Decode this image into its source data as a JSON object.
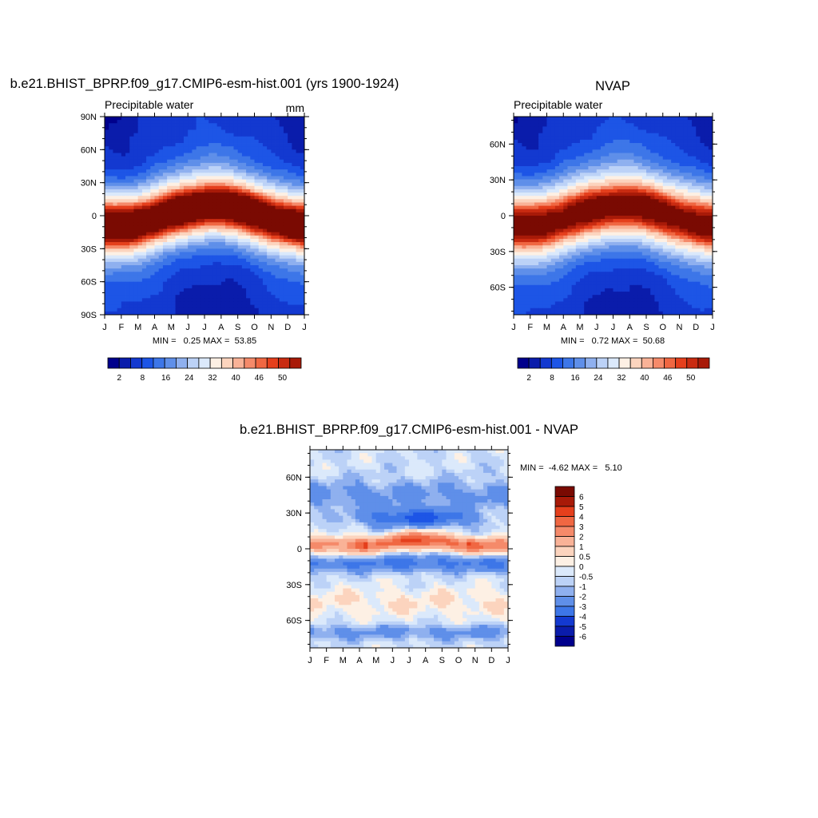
{
  "palette": [
    "#00008c",
    "#0a1cab",
    "#1339d0",
    "#1d55e6",
    "#3d76e8",
    "#5f8fe9",
    "#8fb0ef",
    "#bcd2f7",
    "#dbe9fb",
    "#fdf0e4",
    "#fcd4be",
    "#f9b297",
    "#f58a6a",
    "#f06742",
    "#e53f1c",
    "#c92b11",
    "#a81a08",
    "#7a0a02"
  ],
  "months": [
    "J",
    "F",
    "M",
    "A",
    "M",
    "J",
    "J",
    "A",
    "S",
    "O",
    "N",
    "D",
    "J"
  ],
  "chart_data": [
    {
      "id": "model",
      "type": "heatmap",
      "title": "b.e21.BHIST_BPRP.f09_g17.CMIP6-esm-hist.001 (yrs 1900-1924)",
      "subtitle_left": "Precipitable water",
      "subtitle_right": "mm",
      "y_ticks": [
        "90N",
        "60N",
        "30N",
        "0",
        "30S",
        "60S",
        "90S"
      ],
      "y_tick_values": [
        90,
        60,
        30,
        0,
        -30,
        -60,
        -90
      ],
      "ylim": [
        -90,
        90
      ],
      "stats": "MIN =   0.25 MAX =  53.85",
      "min": 0.25,
      "max": 53.85,
      "itcz_shift": 8,
      "colorbar_labels": [
        "2",
        "8",
        "16",
        "24",
        "32",
        "40",
        "46",
        "50"
      ],
      "levels": [
        2,
        4,
        8,
        12,
        16,
        20,
        24,
        28,
        32,
        36,
        40,
        42,
        44,
        46,
        48,
        50,
        52
      ]
    },
    {
      "id": "nvap",
      "type": "heatmap",
      "title": "NVAP",
      "subtitle_left": "Precipitable water",
      "subtitle_right": "",
      "y_ticks": [
        "60N",
        "30N",
        "0",
        "30S",
        "60S"
      ],
      "y_tick_values": [
        60,
        30,
        0,
        -30,
        -60
      ],
      "ylim": [
        -83,
        83
      ],
      "stats": "MIN =   0.72 MAX =  50.68",
      "min": 0.72,
      "max": 50.68,
      "itcz_shift": 7,
      "colorbar_labels": [
        "2",
        "8",
        "16",
        "24",
        "32",
        "40",
        "46",
        "50"
      ],
      "levels": [
        2,
        4,
        8,
        12,
        16,
        20,
        24,
        28,
        32,
        36,
        40,
        42,
        44,
        46,
        48,
        50,
        52
      ]
    },
    {
      "id": "diff",
      "type": "heatmap",
      "title": "b.e21.BHIST_BPRP.f09_g17.CMIP6-esm-hist.001 - NVAP",
      "y_ticks": [
        "60N",
        "30N",
        "0",
        "30S",
        "60S"
      ],
      "y_tick_values": [
        60,
        30,
        0,
        -30,
        -60
      ],
      "ylim": [
        -83,
        83
      ],
      "stats": "MIN =  -4.62 MAX =   5.10",
      "min": -4.62,
      "max": 5.1,
      "colorbar_labels": [
        "6",
        "5",
        "4",
        "3",
        "2",
        "1",
        "0.5",
        "0",
        "-0.5",
        "-1",
        "-2",
        "-3",
        "-4",
        "-5",
        "-6"
      ],
      "levels": [
        -6,
        -5,
        -4,
        -3,
        -2,
        -1,
        -0.5,
        0,
        0.5,
        1,
        2,
        3,
        4,
        5,
        6
      ]
    }
  ]
}
